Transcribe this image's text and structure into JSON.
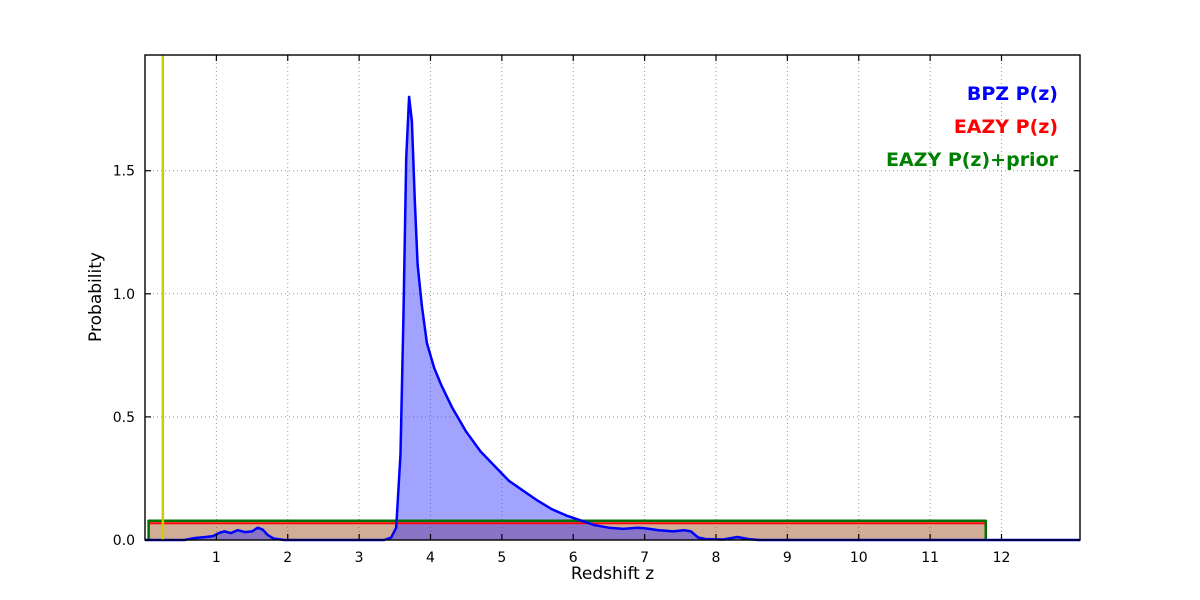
{
  "chart_data": {
    "type": "line",
    "title": "",
    "xlabel": "Redshift z",
    "ylabel": "Probability",
    "xlim": [
      0,
      13.1
    ],
    "ylim": [
      0,
      1.97
    ],
    "xticks": [
      1,
      2,
      3,
      4,
      5,
      6,
      7,
      8,
      9,
      10,
      11,
      12
    ],
    "yticks": [
      0.0,
      0.5,
      1.0,
      1.5
    ],
    "grid": true,
    "grid_style": "dotted",
    "background": "#ffffff",
    "legend": {
      "position": "top-right",
      "entries": [
        {
          "label": "BPZ P(z)",
          "color": "#0000ff"
        },
        {
          "label": "EAZY P(z)",
          "color": "#ff0000"
        },
        {
          "label": "EAZY P(z)+prior",
          "color": "#008000"
        }
      ]
    },
    "series": [
      {
        "name": "EAZY P(z)",
        "type": "line",
        "color": "#ff0000",
        "fill": "rgba(255,0,0,0.28)",
        "line_width": 2,
        "points": [
          [
            0.05,
            0
          ],
          [
            0.05,
            0.068
          ],
          [
            11.78,
            0.068
          ],
          [
            11.78,
            0
          ]
        ]
      },
      {
        "name": "EAZY P(z)+prior",
        "type": "line",
        "color": "#007000",
        "fill": "rgba(0,128,0,0.18)",
        "line_width": 2.5,
        "points": [
          [
            0.05,
            0
          ],
          [
            0.05,
            0.078
          ],
          [
            11.78,
            0.078
          ],
          [
            11.78,
            0
          ]
        ]
      },
      {
        "name": "BPZ P(z)",
        "type": "line",
        "color": "#0000ff",
        "fill": "rgba(48,48,255,0.45)",
        "line_width": 2.5,
        "points": [
          [
            0,
            0
          ],
          [
            0.55,
            0
          ],
          [
            0.7,
            0.008
          ],
          [
            0.85,
            0.012
          ],
          [
            0.95,
            0.016
          ],
          [
            1.05,
            0.03
          ],
          [
            1.12,
            0.035
          ],
          [
            1.2,
            0.028
          ],
          [
            1.3,
            0.04
          ],
          [
            1.4,
            0.032
          ],
          [
            1.5,
            0.035
          ],
          [
            1.58,
            0.05
          ],
          [
            1.65,
            0.042
          ],
          [
            1.72,
            0.02
          ],
          [
            1.8,
            0.006
          ],
          [
            1.95,
            0
          ],
          [
            3.35,
            0
          ],
          [
            3.45,
            0.01
          ],
          [
            3.52,
            0.05
          ],
          [
            3.58,
            0.35
          ],
          [
            3.62,
            0.9
          ],
          [
            3.66,
            1.55
          ],
          [
            3.7,
            1.8
          ],
          [
            3.74,
            1.7
          ],
          [
            3.78,
            1.38
          ],
          [
            3.82,
            1.12
          ],
          [
            3.88,
            0.95
          ],
          [
            3.95,
            0.8
          ],
          [
            4.05,
            0.7
          ],
          [
            4.15,
            0.63
          ],
          [
            4.3,
            0.54
          ],
          [
            4.5,
            0.44
          ],
          [
            4.7,
            0.36
          ],
          [
            4.9,
            0.3
          ],
          [
            5.1,
            0.24
          ],
          [
            5.3,
            0.2
          ],
          [
            5.5,
            0.16
          ],
          [
            5.7,
            0.125
          ],
          [
            5.9,
            0.1
          ],
          [
            6.1,
            0.08
          ],
          [
            6.3,
            0.06
          ],
          [
            6.5,
            0.05
          ],
          [
            6.7,
            0.045
          ],
          [
            6.9,
            0.05
          ],
          [
            7.0,
            0.048
          ],
          [
            7.2,
            0.04
          ],
          [
            7.4,
            0.035
          ],
          [
            7.55,
            0.04
          ],
          [
            7.65,
            0.035
          ],
          [
            7.75,
            0.01
          ],
          [
            7.85,
            0.004
          ],
          [
            8.1,
            0.002
          ],
          [
            8.3,
            0.012
          ],
          [
            8.45,
            0.004
          ],
          [
            8.6,
            0
          ],
          [
            13.1,
            0
          ]
        ]
      },
      {
        "name": "vertical-marker",
        "type": "vline",
        "color": "#cccc00",
        "line_width": 2.5,
        "x": 0.25
      }
    ]
  }
}
